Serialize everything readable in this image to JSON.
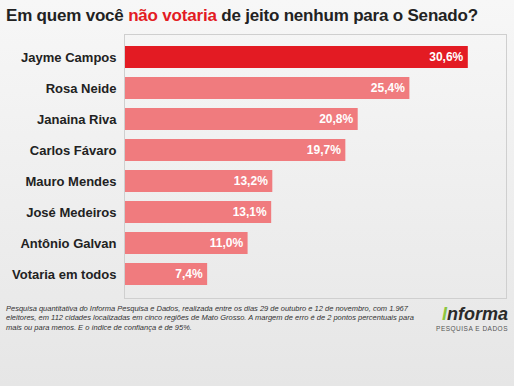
{
  "chart_data": {
    "type": "bar",
    "orientation": "horizontal",
    "title": "Em quem você não votaria de jeito nenhum para o Senado?",
    "categories": [
      "Jayme Campos",
      "Rosa Neide",
      "Janaina Riva",
      "Carlos Fávaro",
      "Mauro Mendes",
      "José Medeiros",
      "Antônio Galvan",
      "Votaria em todos"
    ],
    "values": [
      30.6,
      25.4,
      20.8,
      19.7,
      13.2,
      13.1,
      11.0,
      7.4
    ],
    "value_labels": [
      "30,6%",
      "25,4%",
      "20,8%",
      "19,7%",
      "13,2%",
      "13,1%",
      "11,0%",
      "7,4%"
    ],
    "colors": [
      "#e31b23",
      "#f07b7e",
      "#f07b7e",
      "#f07b7e",
      "#f07b7e",
      "#f07b7e",
      "#f07b7e",
      "#f07b7e"
    ],
    "xlim": [
      0,
      34
    ],
    "xticks": [],
    "tick_labels": "y",
    "data_labels": true,
    "grid": false,
    "caption": "Pesquisa quantitativa do Informa Pesquisa e Dados, realizada entre os dias 29 de outubro e 12 de novembro, com 1.967 eleitores, em 112 cidades localizadas em cinco regiões de Mato Grosso. A margem de erro é de 2 pontos percentuais para mais ou para menos. E o índice de confiança é de 95%.",
    "logo": "Informa",
    "logo_subtitle": "PESQUISA E DADOS"
  }
}
